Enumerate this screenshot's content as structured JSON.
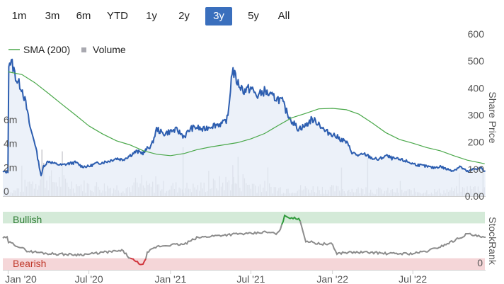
{
  "range_selector": {
    "buttons": [
      "1m",
      "3m",
      "6m",
      "YTD",
      "1y",
      "2y",
      "3y",
      "5y",
      "All"
    ],
    "selected": "3y"
  },
  "colors": {
    "price_line": "#2d5eb0",
    "price_area": "#e6ecf7",
    "sma_line": "#4aa84a",
    "volume_bar": "#c8c8cc",
    "rank_line": "#8c8c8c",
    "rank_bullish_line": "#2e9a3a",
    "rank_bearish_line": "#d0343c",
    "bullish_band": "#d4ead8",
    "bearish_band": "#f5d6d8",
    "active_button": "#3a6fbd"
  },
  "chart_data": [
    {
      "type": "line",
      "title": "",
      "legend": {
        "placement": "top-left",
        "entries": [
          {
            "label": "SMA (200)",
            "symbol": "line",
            "color": "#4aa84a"
          },
          {
            "label": "Volume",
            "symbol": "square",
            "color": "#a9a9b0"
          }
        ]
      },
      "x_ticks": [
        "Jan '20",
        "Jul '20",
        "Jan '21",
        "Jul '21",
        "Jan '22",
        "Jul '22"
      ],
      "y_right_label": "Share Price",
      "y_right_ticks": [
        600,
        500,
        400,
        300,
        200,
        100,
        "0.00"
      ],
      "y_right_range": [
        0,
        600
      ],
      "y_left_ticks": [
        "0",
        "2m",
        "4m",
        "6m"
      ],
      "y_left_range": [
        0,
        8000000
      ],
      "grid": false,
      "series": [
        {
          "name": "Share Price",
          "x": [
            "2020-01-01",
            "2020-01-10",
            "2020-01-20",
            "2020-02-01",
            "2020-02-10",
            "2020-02-20",
            "2020-03-01",
            "2020-03-10",
            "2020-03-16",
            "2020-03-20",
            "2020-04-01",
            "2020-04-15",
            "2020-05-01",
            "2020-05-15",
            "2020-06-01",
            "2020-06-15",
            "2020-07-01",
            "2020-07-15",
            "2020-08-01",
            "2020-08-15",
            "2020-09-01",
            "2020-09-15",
            "2020-10-01",
            "2020-10-15",
            "2020-11-01",
            "2020-11-09",
            "2020-11-20",
            "2020-12-01",
            "2020-12-15",
            "2021-01-01",
            "2021-01-15",
            "2021-02-01",
            "2021-02-15",
            "2021-03-01",
            "2021-03-15",
            "2021-04-01",
            "2021-04-15",
            "2021-05-01",
            "2021-05-10",
            "2021-05-20",
            "2021-06-01",
            "2021-06-15",
            "2021-07-01",
            "2021-07-15",
            "2021-08-01",
            "2021-08-15",
            "2021-09-01",
            "2021-09-10",
            "2021-09-20",
            "2021-10-01",
            "2021-10-15",
            "2021-11-01",
            "2021-11-15",
            "2021-12-01",
            "2021-12-15",
            "2022-01-01",
            "2022-01-15",
            "2022-02-01",
            "2022-02-15",
            "2022-03-01",
            "2022-03-15",
            "2022-04-01",
            "2022-04-15",
            "2022-05-01",
            "2022-05-15",
            "2022-06-01",
            "2022-06-15",
            "2022-07-01",
            "2022-07-15",
            "2022-08-01",
            "2022-08-15",
            "2022-09-01",
            "2022-09-15",
            "2022-10-01",
            "2022-10-15",
            "2022-11-01",
            "2022-11-15",
            "2022-12-01",
            "2022-12-10"
          ],
          "values": [
            500,
            490,
            430,
            400,
            340,
            250,
            200,
            120,
            70,
            110,
            130,
            120,
            115,
            120,
            125,
            110,
            110,
            120,
            125,
            130,
            140,
            135,
            150,
            165,
            160,
            175,
            190,
            250,
            230,
            240,
            245,
            220,
            250,
            255,
            245,
            260,
            265,
            270,
            290,
            470,
            420,
            390,
            400,
            370,
            390,
            370,
            360,
            350,
            310,
            280,
            250,
            260,
            285,
            270,
            240,
            230,
            215,
            200,
            160,
            150,
            155,
            140,
            135,
            150,
            140,
            135,
            130,
            120,
            115,
            110,
            105,
            110,
            100,
            95,
            110,
            90,
            100,
            105,
            90
          ]
        },
        {
          "name": "SMA (200)",
          "x": [
            "2020-01-01",
            "2020-02-01",
            "2020-03-01",
            "2020-04-01",
            "2020-05-01",
            "2020-06-01",
            "2020-07-01",
            "2020-08-01",
            "2020-09-01",
            "2020-10-01",
            "2020-11-01",
            "2020-12-01",
            "2021-01-01",
            "2021-02-01",
            "2021-03-01",
            "2021-04-01",
            "2021-05-01",
            "2021-06-01",
            "2021-07-01",
            "2021-08-01",
            "2021-09-01",
            "2021-10-01",
            "2021-11-01",
            "2021-12-01",
            "2022-01-01",
            "2022-02-01",
            "2022-03-01",
            "2022-04-01",
            "2022-05-01",
            "2022-06-01",
            "2022-07-01",
            "2022-08-01",
            "2022-09-01",
            "2022-10-01",
            "2022-11-01",
            "2022-12-10"
          ],
          "values": [
            460,
            450,
            420,
            380,
            340,
            300,
            260,
            230,
            205,
            190,
            168,
            155,
            150,
            158,
            172,
            182,
            190,
            198,
            212,
            232,
            262,
            290,
            306,
            323,
            325,
            320,
            304,
            270,
            235,
            210,
            196,
            180,
            168,
            150,
            133,
            120
          ]
        }
      ],
      "volume_note": "Volume shown as bars along the bottom of the price panel",
      "volume_profile": {
        "x": [
          "2020-01-01",
          "2020-03-15",
          "2020-06-01",
          "2020-09-01",
          "2020-12-01",
          "2021-03-01",
          "2021-05-20",
          "2021-09-01",
          "2021-12-01",
          "2022-03-01",
          "2022-06-01",
          "2022-09-01",
          "2022-12-10"
        ],
        "typical_volume": [
          200000,
          1500000,
          900000,
          700000,
          800000,
          700000,
          1200000,
          600000,
          600000,
          500000,
          400000,
          400000,
          700000
        ]
      }
    },
    {
      "type": "line",
      "title": "",
      "y_right_label": "StockRank",
      "y_right_ticks": [
        "0"
      ],
      "y_range": [
        0,
        100
      ],
      "bands": [
        {
          "label": "Bullish",
          "from": 80,
          "to": 100
        },
        {
          "label": "Bearish",
          "from": 0,
          "to": 20
        }
      ],
      "x_ticks": [
        "Jan '20",
        "Jul '20",
        "Jan '21",
        "Jul '21",
        "Jan '22",
        "Jul '22"
      ],
      "series": [
        {
          "name": "StockRank",
          "x": [
            "2020-01-01",
            "2020-01-20",
            "2020-02-15",
            "2020-03-10",
            "2020-04-01",
            "2020-05-01",
            "2020-06-01",
            "2020-07-01",
            "2020-08-01",
            "2020-09-01",
            "2020-09-15",
            "2020-10-01",
            "2020-10-20",
            "2020-11-01",
            "2020-11-10",
            "2020-12-01",
            "2021-01-01",
            "2021-02-01",
            "2021-03-01",
            "2021-04-01",
            "2021-05-01",
            "2021-06-01",
            "2021-07-01",
            "2021-08-01",
            "2021-09-01",
            "2021-09-15",
            "2021-10-01",
            "2021-10-10",
            "2021-10-20",
            "2021-11-01",
            "2021-12-01",
            "2022-01-01",
            "2022-01-10",
            "2022-02-01",
            "2022-03-01",
            "2022-04-01",
            "2022-05-01",
            "2022-06-01",
            "2022-07-01",
            "2022-08-01",
            "2022-09-01",
            "2022-10-01",
            "2022-11-01",
            "2022-12-10"
          ],
          "values": [
            48,
            42,
            32,
            30,
            28,
            27,
            26,
            27,
            30,
            32,
            33,
            20,
            12,
            8,
            30,
            40,
            43,
            44,
            55,
            58,
            60,
            62,
            62,
            65,
            62,
            92,
            90,
            88,
            86,
            50,
            45,
            44,
            28,
            30,
            30,
            30,
            28,
            28,
            28,
            32,
            40,
            50,
            62,
            55
          ]
        }
      ]
    }
  ]
}
